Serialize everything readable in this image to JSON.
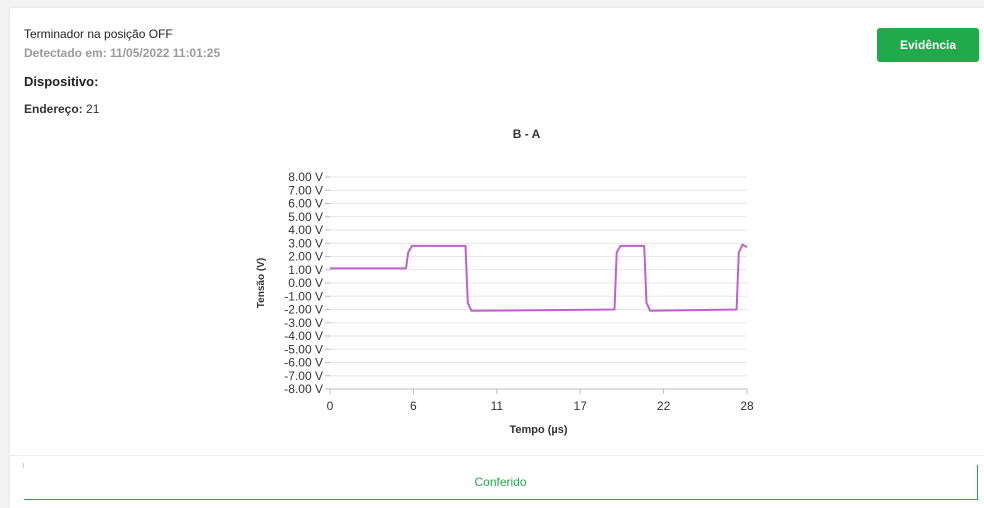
{
  "event": {
    "title": "Terminador na posição OFF",
    "detected": "Detectado em: 11/05/2022 11:01:25",
    "device_label": "Dispositivo:",
    "address_label": "Endereço:",
    "address_value": "21",
    "evidence_button": "Evidência",
    "confirmed_button": "Conferido"
  },
  "colors": {
    "accent": "#1faa4b",
    "series": "#c061cb"
  },
  "chart_data": {
    "type": "line",
    "title": "B - A",
    "xlabel": "Tempo (µs)",
    "ylabel": "Tensão (V)",
    "xlim": [
      0,
      28
    ],
    "ylim": [
      -8,
      8
    ],
    "x_ticks": [
      "0",
      "6",
      "11",
      "17",
      "22",
      "28"
    ],
    "y_ticks": [
      "8.00 V",
      "7.00 V",
      "6.00 V",
      "5.00 V",
      "4.00 V",
      "3.00 V",
      "2.00 V",
      "1.00 V",
      "0.00 V",
      "-1.00 V",
      "-2.00 V",
      "-3.00 V",
      "-4.00 V",
      "-5.00 V",
      "-6.00 V",
      "-7.00 V",
      "-8.00 V"
    ],
    "grid": true,
    "series": [
      {
        "x": [
          0,
          5.1,
          5.25,
          5.5,
          9.1,
          9.25,
          9.5,
          19.1,
          19.25,
          19.5,
          21.1,
          21.25,
          21.5,
          27.3,
          27.45,
          27.7,
          28
        ],
        "y": [
          1.1,
          1.1,
          2.3,
          2.8,
          2.8,
          -1.5,
          -2.1,
          -2.0,
          2.3,
          2.8,
          2.8,
          -1.5,
          -2.1,
          -2.0,
          2.3,
          2.9,
          2.7
        ]
      }
    ]
  }
}
